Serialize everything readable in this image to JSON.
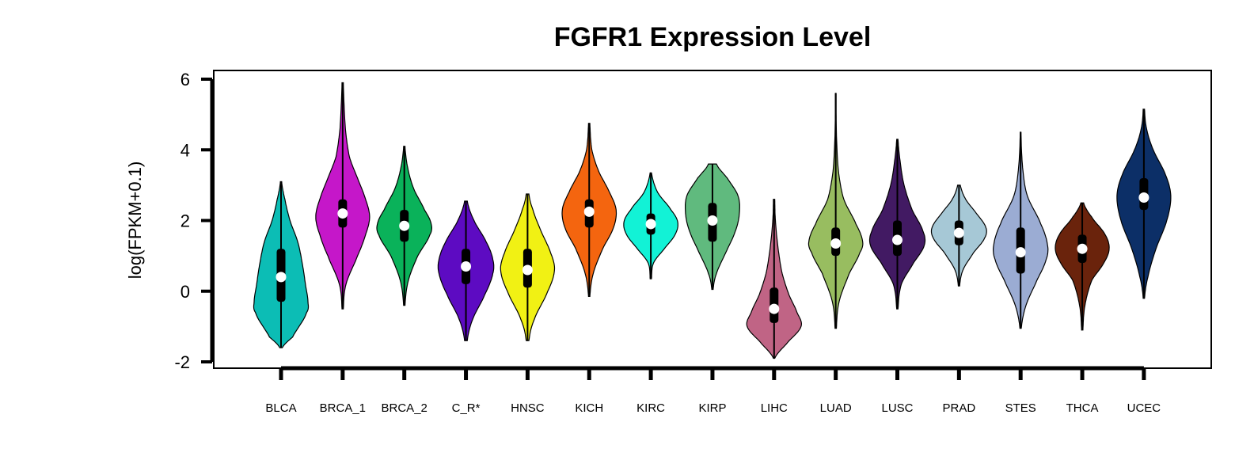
{
  "chart_data": {
    "type": "violin",
    "title": "FGFR1 Expression Level",
    "xlabel": "",
    "ylabel": "log(FPKM+0.1)",
    "ylim": [
      -2,
      6
    ],
    "yticks": [
      -2,
      0,
      2,
      4,
      6
    ],
    "grid": false,
    "legend": "none",
    "series": [
      {
        "category": "BLCA",
        "color": "#0CBDB5",
        "min": -1.6,
        "q1": -0.3,
        "median": 0.4,
        "q3": 1.2,
        "max": 3.1,
        "kde": [
          [
            -1.6,
            0.02
          ],
          [
            -1.3,
            0.18
          ],
          [
            -0.6,
            0.4
          ],
          [
            -0.3,
            0.42
          ],
          [
            0.2,
            0.38
          ],
          [
            0.8,
            0.33
          ],
          [
            1.4,
            0.26
          ],
          [
            2.0,
            0.14
          ],
          [
            2.6,
            0.06
          ],
          [
            3.1,
            0.01
          ]
        ]
      },
      {
        "category": "BRCA_1",
        "color": "#C517C9",
        "min": -0.5,
        "q1": 1.8,
        "median": 2.2,
        "q3": 2.6,
        "max": 5.9,
        "kde": [
          [
            -0.5,
            0.01
          ],
          [
            0.2,
            0.05
          ],
          [
            1.0,
            0.22
          ],
          [
            1.6,
            0.34
          ],
          [
            2.1,
            0.4
          ],
          [
            2.6,
            0.34
          ],
          [
            3.2,
            0.22
          ],
          [
            3.8,
            0.1
          ],
          [
            4.6,
            0.04
          ],
          [
            5.9,
            0.01
          ]
        ]
      },
      {
        "category": "BRCA_2",
        "color": "#0AB25A",
        "min": -0.4,
        "q1": 1.4,
        "median": 1.85,
        "q3": 2.3,
        "max": 4.1,
        "kde": [
          [
            -0.4,
            0.01
          ],
          [
            0.3,
            0.06
          ],
          [
            1.0,
            0.2
          ],
          [
            1.6,
            0.38
          ],
          [
            1.9,
            0.4
          ],
          [
            2.3,
            0.3
          ],
          [
            2.9,
            0.14
          ],
          [
            3.5,
            0.05
          ],
          [
            4.1,
            0.01
          ]
        ]
      },
      {
        "category": "C_R*",
        "color": "#5D0BC2",
        "min": -1.4,
        "q1": 0.2,
        "median": 0.7,
        "q3": 1.2,
        "max": 2.55,
        "kde": [
          [
            -1.4,
            0.02
          ],
          [
            -0.8,
            0.1
          ],
          [
            -0.1,
            0.28
          ],
          [
            0.5,
            0.4
          ],
          [
            0.9,
            0.4
          ],
          [
            1.4,
            0.3
          ],
          [
            2.0,
            0.12
          ],
          [
            2.55,
            0.02
          ]
        ]
      },
      {
        "category": "HNSC",
        "color": "#F1F114",
        "min": -1.4,
        "q1": 0.1,
        "median": 0.6,
        "q3": 1.2,
        "max": 2.75,
        "kde": [
          [
            -1.4,
            0.02
          ],
          [
            -0.8,
            0.1
          ],
          [
            0.0,
            0.3
          ],
          [
            0.6,
            0.4
          ],
          [
            1.1,
            0.34
          ],
          [
            1.7,
            0.2
          ],
          [
            2.3,
            0.08
          ],
          [
            2.75,
            0.02
          ]
        ]
      },
      {
        "category": "KICH",
        "color": "#F4650F",
        "min": -0.15,
        "q1": 1.8,
        "median": 2.25,
        "q3": 2.6,
        "max": 4.75,
        "kde": [
          [
            -0.15,
            0.01
          ],
          [
            0.5,
            0.06
          ],
          [
            1.2,
            0.2
          ],
          [
            1.8,
            0.36
          ],
          [
            2.3,
            0.4
          ],
          [
            2.8,
            0.3
          ],
          [
            3.4,
            0.14
          ],
          [
            4.0,
            0.04
          ],
          [
            4.75,
            0.01
          ]
        ]
      },
      {
        "category": "KIRC",
        "color": "#12F2D6",
        "min": 0.35,
        "q1": 1.6,
        "median": 1.9,
        "q3": 2.2,
        "max": 3.35,
        "kde": [
          [
            0.35,
            0.01
          ],
          [
            0.8,
            0.04
          ],
          [
            1.2,
            0.2
          ],
          [
            1.6,
            0.36
          ],
          [
            1.95,
            0.4
          ],
          [
            2.3,
            0.3
          ],
          [
            2.8,
            0.1
          ],
          [
            3.35,
            0.01
          ]
        ]
      },
      {
        "category": "KIRP",
        "color": "#60BA7E",
        "min": 0.05,
        "q1": 1.4,
        "median": 2.0,
        "q3": 2.5,
        "max": 3.6,
        "kde": [
          [
            0.05,
            0.01
          ],
          [
            0.5,
            0.06
          ],
          [
            1.1,
            0.2
          ],
          [
            1.7,
            0.34
          ],
          [
            2.2,
            0.4
          ],
          [
            2.7,
            0.38
          ],
          [
            3.2,
            0.22
          ],
          [
            3.6,
            0.06
          ]
        ]
      },
      {
        "category": "LIHC",
        "color": "#C06485",
        "min": -1.9,
        "q1": -0.9,
        "median": -0.5,
        "q3": 0.1,
        "max": 2.6,
        "kde": [
          [
            -1.9,
            0.01
          ],
          [
            -1.5,
            0.18
          ],
          [
            -1.0,
            0.4
          ],
          [
            -0.6,
            0.34
          ],
          [
            -0.1,
            0.22
          ],
          [
            0.5,
            0.12
          ],
          [
            1.2,
            0.06
          ],
          [
            2.0,
            0.02
          ],
          [
            2.6,
            0.01
          ]
        ]
      },
      {
        "category": "LUAD",
        "color": "#98BD60",
        "min": -1.05,
        "q1": 1.0,
        "median": 1.35,
        "q3": 1.8,
        "max": 5.6,
        "kde": [
          [
            -1.05,
            0.01
          ],
          [
            -0.3,
            0.05
          ],
          [
            0.5,
            0.2
          ],
          [
            1.1,
            0.36
          ],
          [
            1.4,
            0.4
          ],
          [
            1.9,
            0.3
          ],
          [
            2.6,
            0.12
          ],
          [
            3.4,
            0.04
          ],
          [
            4.5,
            0.01
          ],
          [
            5.6,
            0.005
          ]
        ]
      },
      {
        "category": "LUSC",
        "color": "#421A63",
        "min": -0.5,
        "q1": 1.0,
        "median": 1.45,
        "q3": 2.0,
        "max": 4.3,
        "kde": [
          [
            -0.5,
            0.01
          ],
          [
            0.2,
            0.06
          ],
          [
            0.8,
            0.24
          ],
          [
            1.3,
            0.4
          ],
          [
            1.7,
            0.38
          ],
          [
            2.3,
            0.22
          ],
          [
            3.0,
            0.1
          ],
          [
            3.7,
            0.04
          ],
          [
            4.3,
            0.01
          ]
        ]
      },
      {
        "category": "PRAD",
        "color": "#A6C8D6",
        "min": 0.15,
        "q1": 1.3,
        "median": 1.65,
        "q3": 2.0,
        "max": 3.0,
        "kde": [
          [
            0.15,
            0.01
          ],
          [
            0.6,
            0.06
          ],
          [
            1.1,
            0.22
          ],
          [
            1.5,
            0.38
          ],
          [
            1.8,
            0.4
          ],
          [
            2.2,
            0.26
          ],
          [
            2.6,
            0.1
          ],
          [
            3.0,
            0.02
          ]
        ]
      },
      {
        "category": "STES",
        "color": "#9BACD3",
        "min": -1.05,
        "q1": 0.5,
        "median": 1.1,
        "q3": 1.8,
        "max": 4.5,
        "kde": [
          [
            -1.05,
            0.01
          ],
          [
            -0.4,
            0.08
          ],
          [
            0.3,
            0.24
          ],
          [
            0.9,
            0.38
          ],
          [
            1.3,
            0.4
          ],
          [
            1.9,
            0.3
          ],
          [
            2.7,
            0.1
          ],
          [
            3.5,
            0.03
          ],
          [
            4.5,
            0.005
          ]
        ]
      },
      {
        "category": "THCA",
        "color": "#6A230C",
        "min": -1.1,
        "q1": 0.8,
        "median": 1.2,
        "q3": 1.6,
        "max": 2.5,
        "kde": [
          [
            -1.1,
            0.01
          ],
          [
            -0.4,
            0.04
          ],
          [
            0.3,
            0.14
          ],
          [
            0.8,
            0.32
          ],
          [
            1.2,
            0.4
          ],
          [
            1.6,
            0.34
          ],
          [
            2.1,
            0.14
          ],
          [
            2.5,
            0.02
          ]
        ]
      },
      {
        "category": "UCEC",
        "color": "#0C2F67",
        "min": -0.2,
        "q1": 2.3,
        "median": 2.65,
        "q3": 3.2,
        "max": 5.15,
        "kde": [
          [
            -0.2,
            0.01
          ],
          [
            0.4,
            0.06
          ],
          [
            1.2,
            0.18
          ],
          [
            2.0,
            0.34
          ],
          [
            2.7,
            0.4
          ],
          [
            3.3,
            0.32
          ],
          [
            4.0,
            0.14
          ],
          [
            4.6,
            0.04
          ],
          [
            5.15,
            0.01
          ]
        ]
      }
    ]
  }
}
